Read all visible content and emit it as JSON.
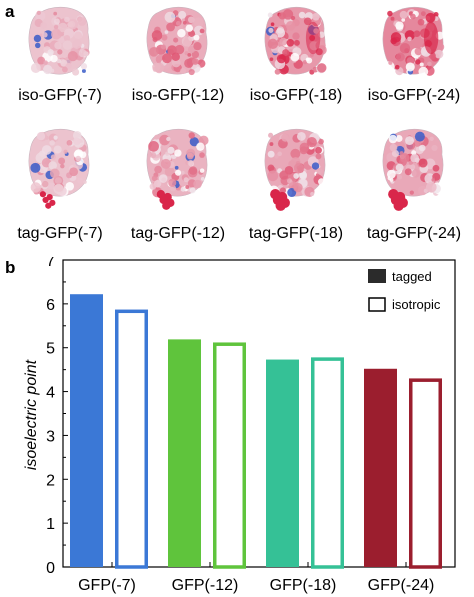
{
  "panel_a": {
    "label": "a",
    "row1": [
      {
        "label": "iso-GFP(-7)",
        "red_level": 0.35
      },
      {
        "label": "iso-GFP(-12)",
        "red_level": 0.55
      },
      {
        "label": "iso-GFP(-18)",
        "red_level": 0.75
      },
      {
        "label": "iso-GFP(-24)",
        "red_level": 0.9
      }
    ],
    "row2": [
      {
        "label": "tag-GFP(-7)",
        "red_level": 0.35,
        "tail": "small"
      },
      {
        "label": "tag-GFP(-12)",
        "red_level": 0.5,
        "tail": "medium"
      },
      {
        "label": "tag-GFP(-18)",
        "red_level": 0.6,
        "tail": "large"
      },
      {
        "label": "tag-GFP(-24)",
        "red_level": 0.6,
        "tail": "large"
      }
    ],
    "colors": {
      "negative": "#d9264a",
      "neutral": "#f1e8ee",
      "positive": "#3a5cc8"
    }
  },
  "panel_b": {
    "label": "b"
  },
  "chart_data": {
    "type": "bar",
    "title": "",
    "xlabel": "",
    "ylabel": "isoelectric point",
    "ylim": [
      0,
      7
    ],
    "yticks": [
      "0",
      "1",
      "2",
      "3",
      "4",
      "5",
      "6",
      "7"
    ],
    "categories": [
      "GFP(-7)",
      "GFP(-12)",
      "GFP(-18)",
      "GFP(-24)"
    ],
    "category_colors": [
      "#3b78d6",
      "#5fc43c",
      "#35c196",
      "#9b1e2e"
    ],
    "series": [
      {
        "name": "tagged",
        "style": "filled",
        "values": [
          6.22,
          5.19,
          4.73,
          4.52
        ]
      },
      {
        "name": "isotropic",
        "style": "outlined",
        "values": [
          5.87,
          5.12,
          4.78,
          4.3
        ]
      }
    ],
    "legend_position": "top-right",
    "grid": false
  }
}
